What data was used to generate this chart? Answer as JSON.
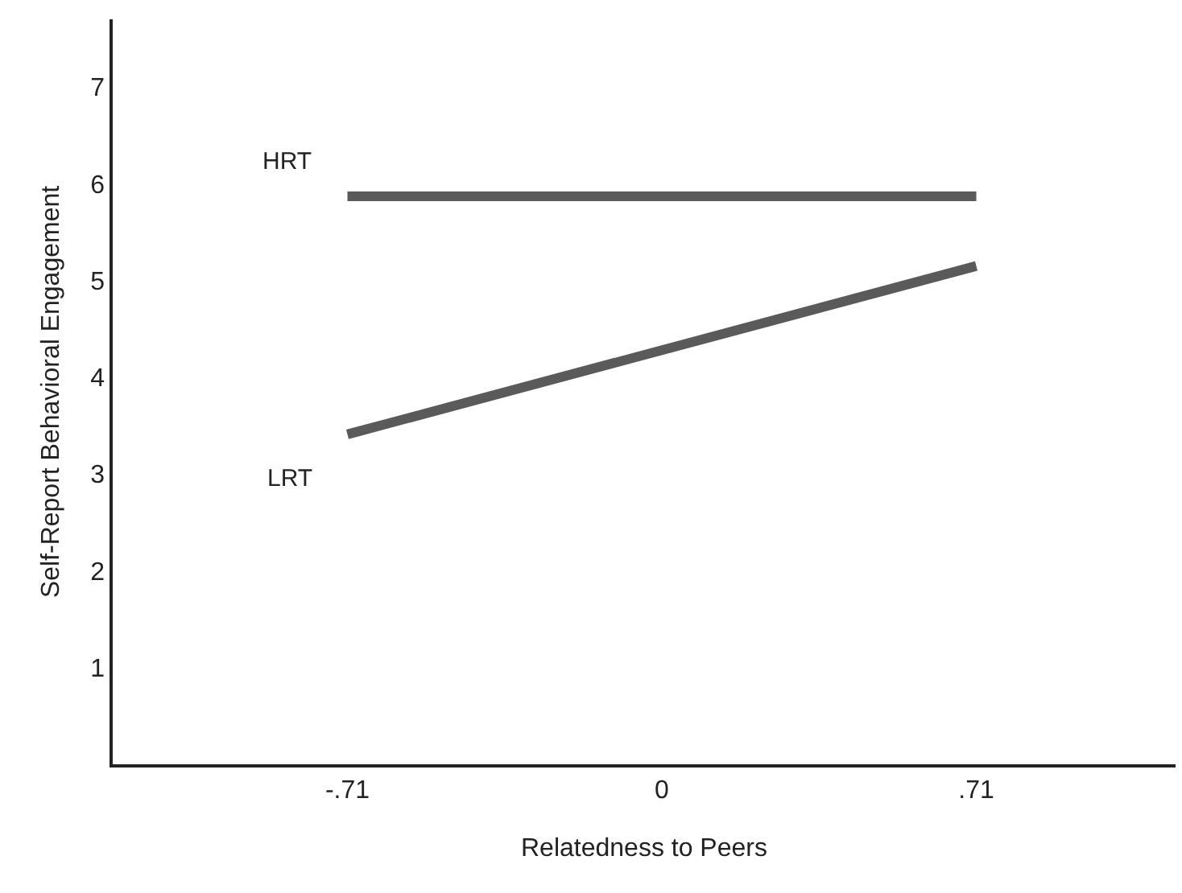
{
  "chart_data": {
    "type": "line",
    "xlabel": "Relatedness to Peers",
    "ylabel": "Self-Report Behavioral Engagement",
    "x": [
      -0.71,
      0.71
    ],
    "series": [
      {
        "name": "HRT",
        "color": "#5a5a5a",
        "values": [
          5.87,
          5.87
        ]
      },
      {
        "name": "LRT",
        "color": "#5a5a5a",
        "values": [
          3.41,
          5.15
        ]
      }
    ],
    "xlim": [
      -1.24,
      1.16
    ],
    "xticks": [
      {
        "value": -0.71,
        "label": "-.71"
      },
      0,
      {
        "value": 0.71,
        "label": ".71"
      }
    ],
    "ylim": [
      0,
      7.7
    ],
    "yticks": [
      1,
      2,
      3,
      4,
      5,
      6,
      7
    ],
    "legend": false,
    "marker": "none",
    "line_style": "solid"
  }
}
